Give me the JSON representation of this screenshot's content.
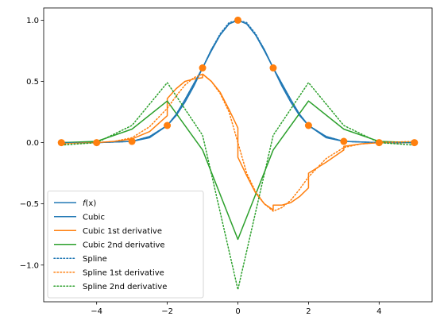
{
  "chart_data": {
    "type": "line",
    "title": "",
    "xlabel": "",
    "ylabel": "",
    "xlim": [
      -5.5,
      5.5
    ],
    "ylim": [
      -1.3,
      1.1
    ],
    "grid": false,
    "legend_position": "lower-left",
    "x_ticks": [
      -4,
      -2,
      0,
      2,
      4
    ],
    "x_tick_labels": [
      "−4",
      "−2",
      "0",
      "2",
      "4"
    ],
    "y_ticks": [
      -1.0,
      -0.5,
      0.0,
      0.5,
      1.0
    ],
    "y_tick_labels": [
      "−1.0",
      "−0.5",
      "0.0",
      "0.5",
      "1.0"
    ],
    "colors": {
      "blue": "#1f77b4",
      "orange": "#ff7f0e",
      "green": "#2ca02c"
    },
    "series": [
      {
        "name": "f(x)",
        "label_main": "f",
        "label_suffix": "(x)",
        "color": "#1f77b4",
        "style": "solid",
        "x": [
          -5,
          -4,
          -3,
          -2.5,
          -2,
          -1.75,
          -1.5,
          -1.25,
          -1,
          -0.75,
          -0.5,
          -0.25,
          0,
          0.25,
          0.5,
          0.75,
          1,
          1.25,
          1.5,
          1.75,
          2,
          2.5,
          3,
          4,
          5
        ],
        "y": [
          0,
          0,
          0.01,
          0.04,
          0.14,
          0.22,
          0.33,
          0.46,
          0.61,
          0.76,
          0.88,
          0.97,
          1.0,
          0.97,
          0.88,
          0.76,
          0.61,
          0.46,
          0.33,
          0.22,
          0.14,
          0.04,
          0.01,
          0,
          0
        ]
      },
      {
        "name": "Cubic",
        "color": "#1f77b4",
        "style": "solid",
        "x": [
          -5,
          -4,
          -3.5,
          -3,
          -2.5,
          -2,
          -1.75,
          -1.5,
          -1.25,
          -1,
          -0.75,
          -0.5,
          -0.25,
          0,
          0.25,
          0.5,
          0.75,
          1,
          1.25,
          1.5,
          1.75,
          2,
          2.5,
          3,
          3.5,
          4,
          5
        ],
        "y": [
          0,
          0,
          0.005,
          0.01,
          0.05,
          0.14,
          0.23,
          0.35,
          0.48,
          0.61,
          0.75,
          0.88,
          0.97,
          1.0,
          0.97,
          0.88,
          0.75,
          0.61,
          0.48,
          0.35,
          0.23,
          0.14,
          0.05,
          0.01,
          0.005,
          0,
          0
        ]
      },
      {
        "name": "Cubic 1st derivative",
        "color": "#ff7f0e",
        "style": "solid",
        "x": [
          -5,
          -4,
          -3.5,
          -3,
          -2.5,
          -2,
          -2,
          -1.75,
          -1.5,
          -1.25,
          -1,
          -1,
          -0.75,
          -0.5,
          -0.25,
          0,
          0,
          0.25,
          0.5,
          0.75,
          1,
          1,
          1.25,
          1.5,
          1.75,
          2,
          2,
          2.5,
          3,
          3,
          3.5,
          4,
          5
        ],
        "y": [
          0,
          0,
          0.01,
          0.03,
          0.09,
          0.22,
          0.36,
          0.44,
          0.5,
          0.52,
          0.53,
          0.56,
          0.5,
          0.41,
          0.27,
          0.12,
          -0.12,
          -0.27,
          -0.41,
          -0.5,
          -0.55,
          -0.51,
          -0.51,
          -0.49,
          -0.44,
          -0.37,
          -0.25,
          -0.16,
          -0.06,
          -0.03,
          -0.01,
          0,
          0
        ]
      },
      {
        "name": "Cubic 2nd derivative",
        "color": "#2ca02c",
        "style": "solid",
        "x": [
          -5,
          -4,
          -3,
          -2,
          -1,
          0,
          1,
          2,
          3,
          4,
          5
        ],
        "y": [
          0,
          0.01,
          0.11,
          0.34,
          -0.06,
          -0.79,
          -0.06,
          0.34,
          0.11,
          0.01,
          0
        ]
      },
      {
        "name": "Spline",
        "color": "#1f77b4",
        "style": "dotted",
        "x": [
          -5,
          -4,
          -3.5,
          -3,
          -2.5,
          -2,
          -1.75,
          -1.5,
          -1.25,
          -1,
          -0.75,
          -0.5,
          -0.25,
          0,
          0.25,
          0.5,
          0.75,
          1,
          1.25,
          1.5,
          1.75,
          2,
          2.5,
          3,
          3.5,
          4,
          5
        ],
        "y": [
          0,
          0,
          0.005,
          0.01,
          0.05,
          0.14,
          0.23,
          0.35,
          0.48,
          0.61,
          0.76,
          0.89,
          0.98,
          1.0,
          0.98,
          0.89,
          0.76,
          0.61,
          0.48,
          0.35,
          0.23,
          0.14,
          0.05,
          0.01,
          0.005,
          0,
          0
        ]
      },
      {
        "name": "Spline 1st derivative",
        "color": "#ff7f0e",
        "style": "dotted",
        "x": [
          -5,
          -4,
          -3.5,
          -3,
          -2.5,
          -2,
          -1.75,
          -1.5,
          -1.25,
          -1,
          -0.75,
          -0.5,
          -0.25,
          0,
          0.25,
          0.5,
          0.75,
          1,
          1.25,
          1.5,
          1.75,
          2,
          2.5,
          3,
          3.5,
          4,
          5
        ],
        "y": [
          -0.01,
          0,
          0.01,
          0.04,
          0.13,
          0.28,
          0.38,
          0.47,
          0.53,
          0.56,
          0.5,
          0.4,
          0.25,
          0.0,
          -0.25,
          -0.4,
          -0.5,
          -0.56,
          -0.53,
          -0.47,
          -0.38,
          -0.28,
          -0.13,
          -0.04,
          -0.01,
          0,
          0.01
        ]
      },
      {
        "name": "Spline 2nd derivative",
        "color": "#2ca02c",
        "style": "dotted",
        "x": [
          -5,
          -4,
          -3,
          -2,
          -1,
          0,
          1,
          2,
          3,
          4,
          5
        ],
        "y": [
          -0.02,
          0.0,
          0.14,
          0.49,
          0.06,
          -1.2,
          0.06,
          0.49,
          0.14,
          0.0,
          -0.02
        ]
      }
    ],
    "markers": {
      "color": "#ff7f0e",
      "x": [
        -5,
        -4,
        -3,
        -2,
        -1,
        0,
        1,
        2,
        3,
        4,
        5
      ],
      "y": [
        0.0,
        0.0,
        0.01,
        0.14,
        0.61,
        1.0,
        0.61,
        0.14,
        0.01,
        0.0,
        0.0
      ]
    }
  }
}
